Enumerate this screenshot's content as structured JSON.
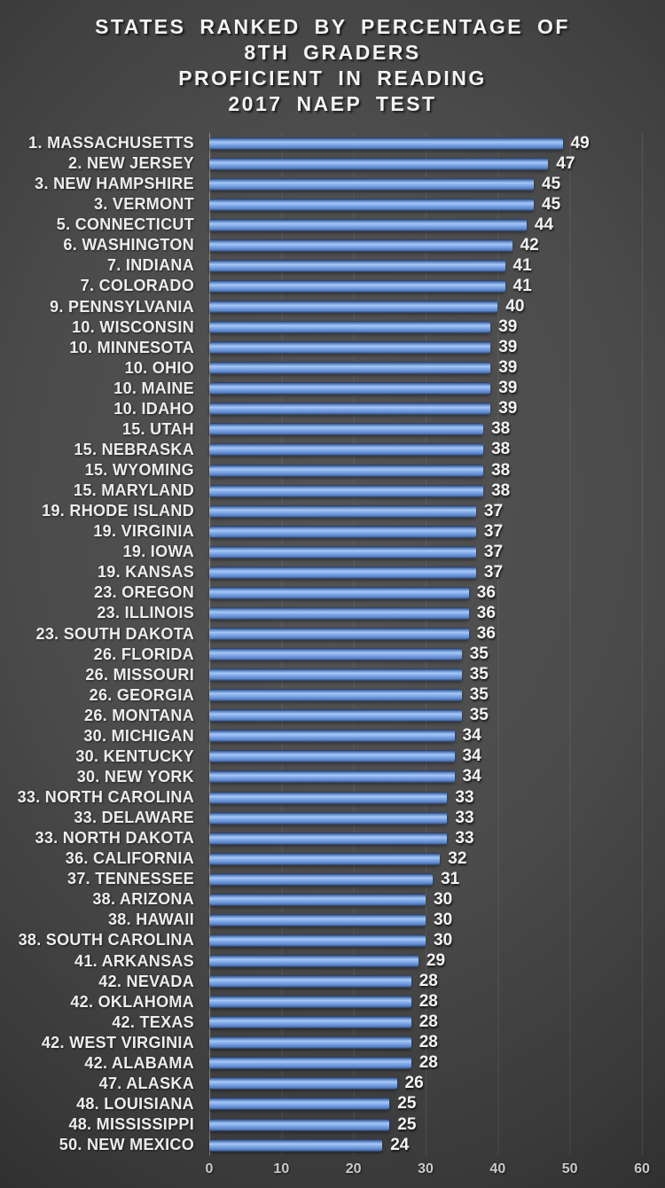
{
  "title": {
    "lines": [
      "STATES RANKED BY PERCENTAGE OF",
      "8TH GRADERS",
      "PROFICIENT IN READING",
      "2017 NAEP TEST"
    ]
  },
  "chart_data": {
    "type": "bar",
    "orientation": "horizontal",
    "title": "STATES RANKED BY PERCENTAGE OF 8TH GRADERS PROFICIENT IN READING 2017 NAEP TEST",
    "categories": [
      "1. MASSACHUSETTS",
      "2. NEW JERSEY",
      "3. NEW HAMPSHIRE",
      "3. VERMONT",
      "5. CONNECTICUT",
      "6. WASHINGTON",
      "7. INDIANA",
      "7. COLORADO",
      "9. PENNSYLVANIA",
      "10. WISCONSIN",
      "10. MINNESOTA",
      "10. OHIO",
      "10. MAINE",
      "10. IDAHO",
      "15. UTAH",
      "15. NEBRASKA",
      "15. WYOMING",
      "15. MARYLAND",
      "19. RHODE ISLAND",
      "19. VIRGINIA",
      "19. IOWA",
      "19. KANSAS",
      "23. OREGON",
      "23. ILLINOIS",
      "23. SOUTH DAKOTA",
      "26. FLORIDA",
      "26. MISSOURI",
      "26. GEORGIA",
      "26. MONTANA",
      "30. MICHIGAN",
      "30. KENTUCKY",
      "30. NEW YORK",
      "33. NORTH CAROLINA",
      "33. DELAWARE",
      "33. NORTH DAKOTA",
      "36. CALIFORNIA",
      "37. TENNESSEE",
      "38. ARIZONA",
      "38. HAWAII",
      "38. SOUTH CAROLINA",
      "41. ARKANSAS",
      "42. NEVADA",
      "42. OKLAHOMA",
      "42. TEXAS",
      "42. WEST VIRGINIA",
      "42. ALABAMA",
      "47. ALASKA",
      "48. LOUISIANA",
      "48. MISSISSIPPI",
      "50. NEW MEXICO"
    ],
    "values": [
      49,
      47,
      45,
      45,
      44,
      42,
      41,
      41,
      40,
      39,
      39,
      39,
      39,
      39,
      38,
      38,
      38,
      38,
      37,
      37,
      37,
      37,
      36,
      36,
      36,
      35,
      35,
      35,
      35,
      34,
      34,
      34,
      33,
      33,
      33,
      32,
      31,
      30,
      30,
      30,
      29,
      28,
      28,
      28,
      28,
      28,
      26,
      25,
      25,
      24
    ],
    "xlabel": "",
    "ylabel": "",
    "xlim": [
      0,
      60
    ],
    "x_ticks": [
      0,
      10,
      20,
      30,
      40,
      50,
      60
    ],
    "grid": true,
    "legend": false,
    "colors": {
      "bar_main": "#6f9ade",
      "bar_highlight": "#a6c8f4",
      "bar_edge": "#2b3a57",
      "background_center": "#4b4b4b",
      "background_edge": "#262626",
      "label_text": "#ededed",
      "tick_text": "#c9c9c9",
      "gridline": "rgba(255,255,255,0.09)"
    }
  }
}
